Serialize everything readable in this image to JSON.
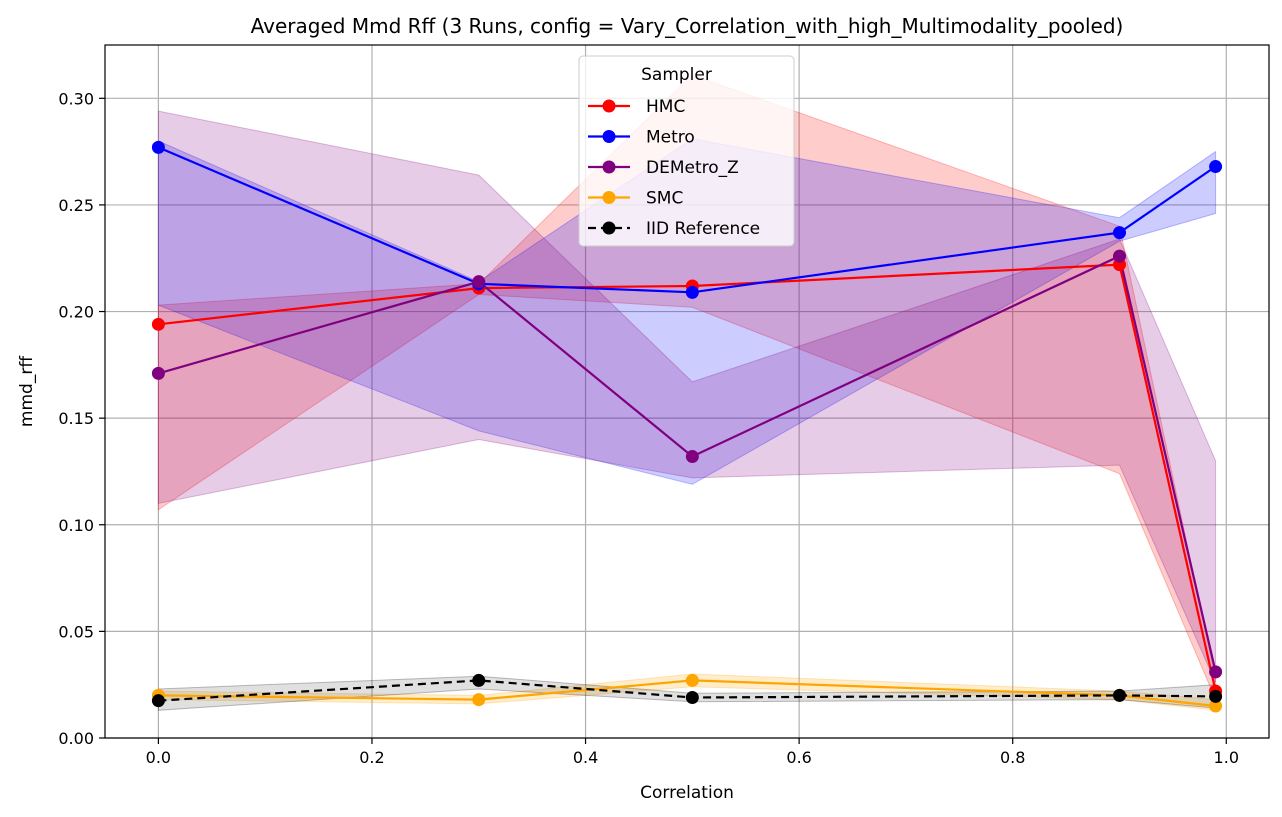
{
  "chart_data": {
    "type": "line",
    "title": "Averaged Mmd Rff (3 Runs, config = Vary_Correlation_with_high_Multimodality_pooled)",
    "xlabel": "Correlation",
    "ylabel": "mmd_rff",
    "xlim": [
      -0.05,
      1.04
    ],
    "ylim": [
      0.0,
      0.325
    ],
    "xticks": [
      0.0,
      0.2,
      0.4,
      0.6,
      0.8,
      1.0
    ],
    "xtick_labels": [
      "0.0",
      "0.2",
      "0.4",
      "0.6",
      "0.8",
      "1.0"
    ],
    "yticks": [
      0.0,
      0.05,
      0.1,
      0.15,
      0.2,
      0.25,
      0.3
    ],
    "ytick_labels": [
      "0.00",
      "0.05",
      "0.10",
      "0.15",
      "0.20",
      "0.25",
      "0.30"
    ],
    "grid": true,
    "legend_title": "Sampler",
    "legend_position": "top-center",
    "x": [
      0.0,
      0.3,
      0.5,
      0.9,
      0.99
    ],
    "series": [
      {
        "name": "HMC",
        "color": "#ff0000",
        "dashed": false,
        "values": [
          0.194,
          0.211,
          0.212,
          0.222,
          0.022
        ],
        "lower": [
          0.107,
          0.208,
          0.202,
          0.124,
          0.018
        ],
        "upper": [
          0.203,
          0.213,
          0.311,
          0.24,
          0.028
        ]
      },
      {
        "name": "Metro",
        "color": "#0000ff",
        "dashed": false,
        "values": [
          0.277,
          0.213,
          0.209,
          0.237,
          0.268
        ],
        "lower": [
          0.203,
          0.144,
          0.119,
          0.233,
          0.246
        ],
        "upper": [
          0.28,
          0.214,
          0.281,
          0.244,
          0.275
        ]
      },
      {
        "name": "DEMetro_Z",
        "color": "#800080",
        "dashed": false,
        "values": [
          0.171,
          0.214,
          0.132,
          0.226,
          0.031
        ],
        "lower": [
          0.11,
          0.14,
          0.122,
          0.128,
          0.026
        ],
        "upper": [
          0.294,
          0.264,
          0.167,
          0.234,
          0.13
        ]
      },
      {
        "name": "SMC",
        "color": "#ffa500",
        "dashed": false,
        "values": [
          0.02,
          0.018,
          0.027,
          0.02,
          0.015
        ],
        "lower": [
          0.018,
          0.016,
          0.024,
          0.018,
          0.013
        ],
        "upper": [
          0.022,
          0.02,
          0.03,
          0.022,
          0.018
        ]
      },
      {
        "name": "IID Reference",
        "color": "#000000",
        "dashed": true,
        "values": [
          0.0175,
          0.027,
          0.019,
          0.02,
          0.0195
        ],
        "lower": [
          0.013,
          0.023,
          0.017,
          0.018,
          0.014
        ],
        "upper": [
          0.023,
          0.029,
          0.021,
          0.022,
          0.025
        ]
      }
    ]
  }
}
